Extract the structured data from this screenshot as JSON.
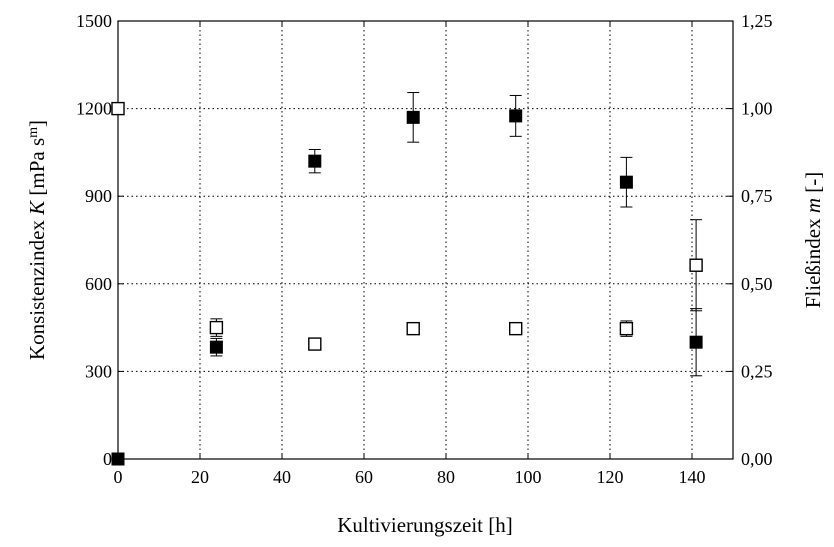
{
  "chart_data": {
    "type": "scatter",
    "xlabel": "Kultivierungszeit [h]",
    "ylabel_left": {
      "pre": "Konsistenzindex ",
      "var": "K",
      "post": " [mPa s",
      "sup": "m",
      "end": "]"
    },
    "ylabel_right": {
      "pre": "Fließindex ",
      "var": "m",
      "post": " [-]"
    },
    "xlim": [
      0,
      150
    ],
    "ylim_left": [
      0,
      1500
    ],
    "ylim_right": [
      0,
      1.25
    ],
    "xticks": [
      0,
      20,
      40,
      60,
      80,
      100,
      120,
      140
    ],
    "yticks_left": [
      0,
      300,
      600,
      900,
      1200,
      1500
    ],
    "yticks_right": [
      "0,00",
      "0,25",
      "0,50",
      "0,75",
      "1,00",
      "1,25"
    ],
    "grid": true,
    "series": [
      {
        "marker": "filled-square",
        "axis": "left",
        "x": [
          0,
          24,
          48,
          72,
          97,
          124,
          141
        ],
        "y": [
          0,
          383,
          1020,
          1170,
          1175,
          948,
          400
        ],
        "err": [
          0,
          30,
          40,
          85,
          70,
          85,
          115
        ]
      },
      {
        "marker": "open-square",
        "axis": "right",
        "x": [
          0,
          24,
          48,
          72,
          97,
          124,
          141
        ],
        "y": [
          1.0,
          0.375,
          0.328,
          0.372,
          0.372,
          0.372,
          0.553
        ],
        "err": [
          0,
          0.025,
          0,
          0.012,
          0.012,
          0.022,
          0.13
        ]
      }
    ]
  }
}
